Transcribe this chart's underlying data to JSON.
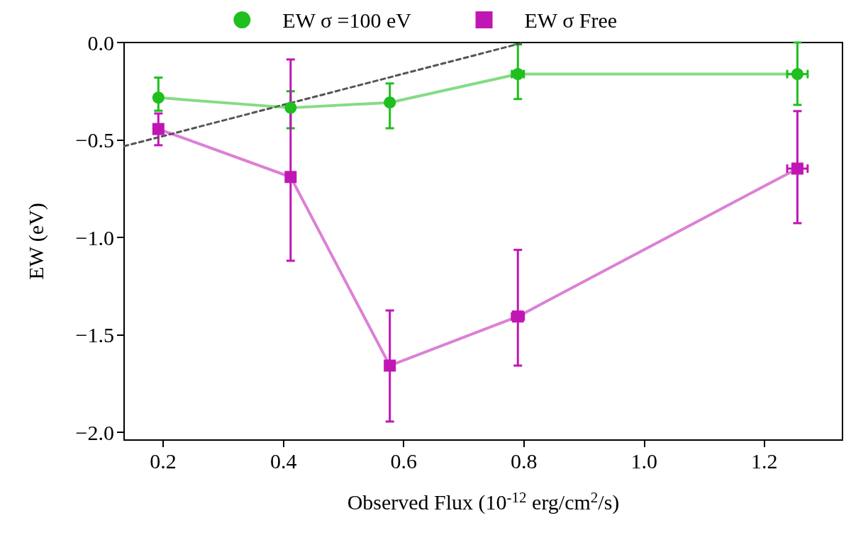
{
  "chart_data": {
    "type": "line",
    "xlabel": "Observed Flux (10$^{-12}$ erg/cm$^{2}$/s)",
    "ylabel": "EW (eV)",
    "xlim": [
      0.135,
      1.33
    ],
    "ylim": [
      -2.04,
      0
    ],
    "xticks": [
      {
        "value": 0.2,
        "label": "0.2"
      },
      {
        "value": 0.4,
        "label": "0.4"
      },
      {
        "value": 0.6,
        "label": "0.6"
      },
      {
        "value": 0.8,
        "label": "0.8"
      },
      {
        "value": 1.0,
        "label": "1.0"
      },
      {
        "value": 1.2,
        "label": "1.2"
      }
    ],
    "yticks": [
      {
        "value": 0,
        "label": "0.0"
      },
      {
        "value": -0.5,
        "label": "−0.5"
      },
      {
        "value": -1.0,
        "label": "−1.0"
      },
      {
        "value": -1.5,
        "label": "−1.5"
      },
      {
        "value": -2.0,
        "label": "−2.0"
      }
    ],
    "grid": false,
    "legend": "top",
    "line_style": "solid",
    "series": [
      {
        "name": "EW σ =100 eV",
        "color": "#1fbf1f",
        "marker": "circle",
        "x": [
          0.192,
          0.412,
          0.577,
          0.79,
          1.255
        ],
        "values": [
          -0.283,
          -0.335,
          -0.308,
          -0.162,
          -0.162
        ],
        "errors": [
          [
            -0.35,
            -0.18
          ],
          [
            -0.44,
            -0.25
          ],
          [
            -0.44,
            -0.21
          ],
          [
            -0.29,
            -0.01
          ],
          [
            -0.32,
            0
          ]
        ],
        "xerrors": [
          0.004,
          0.004,
          0.004,
          0.01,
          0.017
        ]
      },
      {
        "name": "EW σ Free",
        "color": "#c017b4",
        "marker": "square",
        "x": [
          0.192,
          0.412,
          0.577,
          0.79,
          1.255
        ],
        "values": [
          -0.444,
          -0.69,
          -1.658,
          -1.406,
          -0.647
        ],
        "errors": [
          [
            -0.527,
            -0.364
          ],
          [
            -1.12,
            -0.087
          ],
          [
            -1.945,
            -1.375
          ],
          [
            -1.658,
            -1.064
          ],
          [
            -0.927,
            -0.352
          ]
        ],
        "xerrors": [
          0.004,
          0.004,
          0.004,
          0.01,
          0.017
        ]
      },
      {
        "type": "line",
        "color": "#555555",
        "line_style": "dashed",
        "marker": "none",
        "x": [
          0.135,
          0.8
        ],
        "values": [
          -0.532,
          0
        ]
      }
    ]
  }
}
